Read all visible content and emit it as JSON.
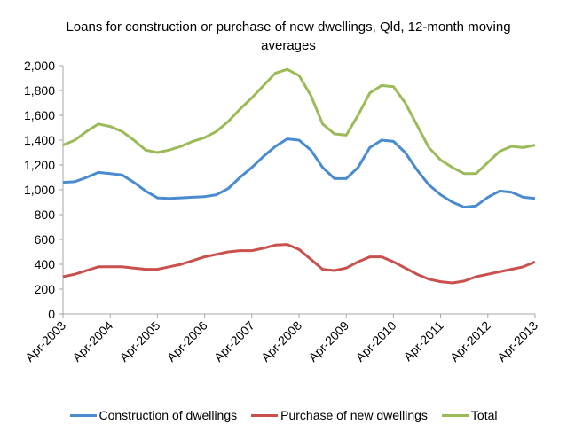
{
  "chart_data": {
    "type": "line",
    "title": "Loans for construction or purchase of new dwellings, Qld, 12-month moving averages",
    "xlabel": "",
    "ylabel": "",
    "ylim": [
      0,
      2000
    ],
    "yticks": [
      "0",
      "200",
      "400",
      "600",
      "800",
      "1,000",
      "1,200",
      "1,400",
      "1,600",
      "1,800",
      "2,000"
    ],
    "xticks": [
      "Apr-2003",
      "Apr-2004",
      "Apr-2005",
      "Apr-2006",
      "Apr-2007",
      "Apr-2008",
      "Apr-2009",
      "Apr-2010",
      "Apr-2011",
      "Apr-2012",
      "Apr-2013"
    ],
    "x_start": "Apr-2003",
    "x_step": "quarterly",
    "grid": false,
    "legend": "bottom",
    "series": [
      {
        "name": "Construction of dwellings",
        "color": "#4a8bd0",
        "values": [
          1060,
          1065,
          1100,
          1140,
          1130,
          1120,
          1060,
          990,
          935,
          930,
          935,
          940,
          945,
          960,
          1010,
          1100,
          1180,
          1270,
          1350,
          1410,
          1400,
          1320,
          1180,
          1090,
          1090,
          1180,
          1340,
          1400,
          1390,
          1300,
          1160,
          1040,
          960,
          900,
          860,
          870,
          940,
          990,
          980,
          940,
          930
        ]
      },
      {
        "name": "Purchase of new dwellings",
        "color": "#c9504d",
        "values": [
          300,
          320,
          350,
          380,
          380,
          380,
          370,
          360,
          360,
          380,
          400,
          430,
          460,
          480,
          500,
          510,
          510,
          530,
          555,
          560,
          520,
          440,
          360,
          350,
          370,
          420,
          460,
          460,
          420,
          370,
          320,
          280,
          260,
          250,
          265,
          300,
          320,
          340,
          360,
          380,
          420
        ]
      },
      {
        "name": "Total",
        "color": "#9bbb59",
        "values": [
          1360,
          1400,
          1470,
          1530,
          1510,
          1470,
          1400,
          1320,
          1300,
          1320,
          1350,
          1390,
          1420,
          1470,
          1550,
          1650,
          1740,
          1840,
          1940,
          1970,
          1920,
          1760,
          1530,
          1450,
          1440,
          1600,
          1780,
          1840,
          1830,
          1700,
          1520,
          1340,
          1240,
          1180,
          1130,
          1130,
          1220,
          1310,
          1350,
          1340,
          1360
        ]
      }
    ]
  }
}
